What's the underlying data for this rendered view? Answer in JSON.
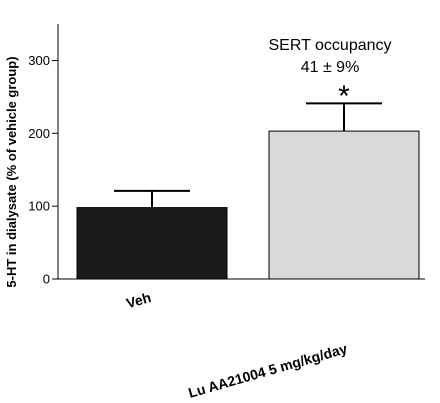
{
  "chart_data": {
    "type": "bar",
    "categories": [
      "Veh",
      "Lu AA21004 5 mg/kg/day"
    ],
    "values": [
      98,
      203
    ],
    "error_upper": [
      121,
      241
    ],
    "bar_colors": [
      "#1a1a1a",
      "#d9d9d9"
    ],
    "ylabel": "5-HT in dialysate (% of vehicle group)",
    "xlabel": "",
    "ylim": [
      0,
      350
    ],
    "yticks": [
      0,
      100,
      200,
      300
    ],
    "grid": false,
    "annotation": {
      "line1": "SERT occupancy",
      "line2": "41 ± 9%",
      "significance": "*"
    }
  }
}
